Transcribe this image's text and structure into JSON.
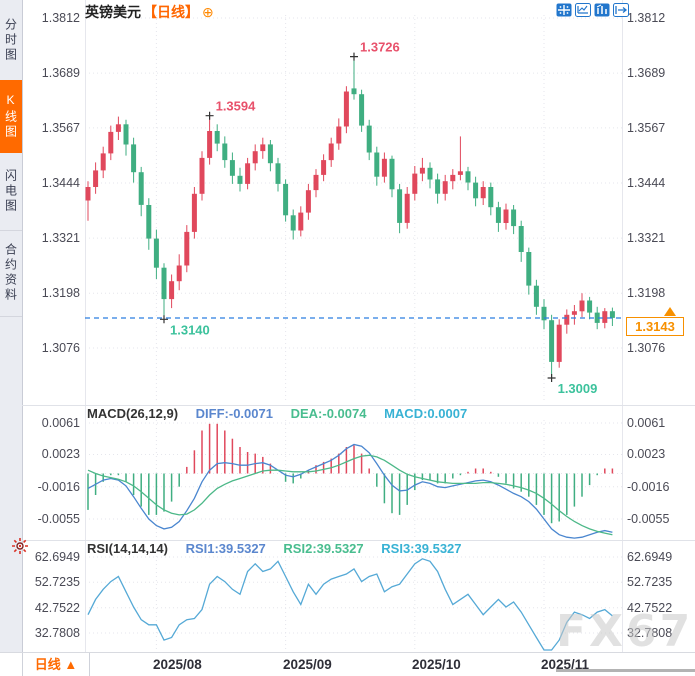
{
  "sidebar": {
    "tabs": [
      {
        "label": "分时图",
        "active": false
      },
      {
        "label": "K线图",
        "active": true
      },
      {
        "label": "闪电图",
        "active": false
      },
      {
        "label": "合约资料",
        "active": false
      }
    ]
  },
  "header": {
    "symbol": "英镑美元",
    "period_tag": "【日线】",
    "add_icon": "⊕",
    "toolbar_icons": [
      "crosshair-icon",
      "axis-scale-icon",
      "chart-style-icon",
      "popout-icon"
    ]
  },
  "colors": {
    "up": "#e0485c",
    "down": "#3fae81",
    "ann_red": "#e8516b",
    "ann_green": "#3cc29c",
    "diff_line": "#4a86cf",
    "dea_line": "#4cb888",
    "rsi_line": "#55a9d6",
    "dashed_line": "#2b7de0",
    "accent_orange": "#ff6a00",
    "tag_orange": "#f79000",
    "toolbar_blue": "#2276cc",
    "grid": "#e5e6ec"
  },
  "price_panel": {
    "axis_labels": [
      "1.3812",
      "1.3689",
      "1.3567",
      "1.3444",
      "1.3321",
      "1.3198",
      "1.3076"
    ],
    "axis_values": [
      1.3812,
      1.3689,
      1.3567,
      1.3444,
      1.3321,
      1.3198,
      1.3076
    ],
    "current_price": "1.3143"
  },
  "macd_panel": {
    "title": "MACD(26,12,9)",
    "diff_label": "DIFF:-0.0071",
    "dea_label": "DEA:-0.0074",
    "macd_label": "MACD:0.0007",
    "axis_labels": [
      "0.0061",
      "0.0023",
      "-0.0016",
      "-0.0055"
    ]
  },
  "rsi_panel": {
    "title": "RSI(14,14,14)",
    "rsi1_label": "RSI1:39.5327",
    "rsi2_label": "RSI2:39.5327",
    "rsi3_label": "RSI3:39.5327",
    "axis_labels": [
      "62.6949",
      "52.7235",
      "42.7522",
      "32.7808"
    ]
  },
  "bottom_bar": {
    "period_label": "日线",
    "period_arrow": "▲"
  },
  "watermark": "FX678",
  "chart_data": {
    "type": "candlestick",
    "instrument": "英镑美元",
    "period": "日线",
    "price_axis_range": [
      1.3076,
      1.3812
    ],
    "current_price": 1.3143,
    "month_ticks": [
      {
        "label": "2025/08",
        "index": 9
      },
      {
        "label": "2025/09",
        "index": 26
      },
      {
        "label": "2025/10",
        "index": 43
      },
      {
        "label": "2025/11",
        "index": 60
      }
    ],
    "marked_points": [
      {
        "label": "1.3594",
        "index": 16,
        "kind": "high"
      },
      {
        "label": "1.3726",
        "index": 35,
        "kind": "high"
      },
      {
        "label": "1.3140",
        "index": 10,
        "kind": "low"
      },
      {
        "label": "1.3009",
        "index": 61,
        "kind": "low"
      }
    ],
    "candles": [
      [
        1.3405,
        1.3448,
        1.336,
        1.3435
      ],
      [
        1.3435,
        1.349,
        1.342,
        1.3472
      ],
      [
        1.3472,
        1.3525,
        1.3455,
        1.351
      ],
      [
        1.351,
        1.3572,
        1.3495,
        1.3558
      ],
      [
        1.3558,
        1.3592,
        1.354,
        1.3575
      ],
      [
        1.3575,
        1.3585,
        1.3505,
        1.353
      ],
      [
        1.353,
        1.3545,
        1.3445,
        1.3468
      ],
      [
        1.3468,
        1.348,
        1.337,
        1.3395
      ],
      [
        1.3395,
        1.341,
        1.3295,
        1.332
      ],
      [
        1.332,
        1.334,
        1.323,
        1.3255
      ],
      [
        1.3255,
        1.3265,
        1.314,
        1.3185
      ],
      [
        1.3185,
        1.324,
        1.3165,
        1.3225
      ],
      [
        1.3225,
        1.3285,
        1.3205,
        1.326
      ],
      [
        1.326,
        1.335,
        1.3245,
        1.3335
      ],
      [
        1.3335,
        1.3435,
        1.332,
        1.342
      ],
      [
        1.342,
        1.3515,
        1.3405,
        1.35
      ],
      [
        1.35,
        1.3594,
        1.3485,
        1.356
      ],
      [
        1.356,
        1.3575,
        1.3515,
        1.3532
      ],
      [
        1.3532,
        1.3548,
        1.3478,
        1.3495
      ],
      [
        1.3495,
        1.3512,
        1.3442,
        1.346
      ],
      [
        1.346,
        1.3478,
        1.3425,
        1.3442
      ],
      [
        1.3442,
        1.35,
        1.343,
        1.3488
      ],
      [
        1.3488,
        1.353,
        1.3472,
        1.3515
      ],
      [
        1.3515,
        1.3545,
        1.3498,
        1.353
      ],
      [
        1.353,
        1.354,
        1.347,
        1.3488
      ],
      [
        1.3488,
        1.35,
        1.3425,
        1.3442
      ],
      [
        1.3442,
        1.3452,
        1.3358,
        1.3372
      ],
      [
        1.3372,
        1.3385,
        1.3318,
        1.3338
      ],
      [
        1.3338,
        1.3392,
        1.3325,
        1.3378
      ],
      [
        1.3378,
        1.3442,
        1.3362,
        1.3428
      ],
      [
        1.3428,
        1.3475,
        1.3412,
        1.3462
      ],
      [
        1.3462,
        1.3508,
        1.3448,
        1.3495
      ],
      [
        1.3495,
        1.3545,
        1.348,
        1.3532
      ],
      [
        1.3532,
        1.3588,
        1.3518,
        1.357
      ],
      [
        1.357,
        1.366,
        1.3555,
        1.3648
      ],
      [
        1.3655,
        1.3726,
        1.363,
        1.3642
      ],
      [
        1.3642,
        1.3652,
        1.3558,
        1.3572
      ],
      [
        1.3572,
        1.3585,
        1.3495,
        1.3512
      ],
      [
        1.3512,
        1.3525,
        1.3438,
        1.3458
      ],
      [
        1.3458,
        1.3512,
        1.3445,
        1.3498
      ],
      [
        1.3498,
        1.3505,
        1.3412,
        1.343
      ],
      [
        1.343,
        1.3442,
        1.3332,
        1.3355
      ],
      [
        1.3355,
        1.3435,
        1.3342,
        1.342
      ],
      [
        1.342,
        1.3482,
        1.3405,
        1.3465
      ],
      [
        1.3465,
        1.35,
        1.3448,
        1.3478
      ],
      [
        1.3478,
        1.349,
        1.3432,
        1.3452
      ],
      [
        1.3452,
        1.3465,
        1.3398,
        1.342
      ],
      [
        1.342,
        1.3462,
        1.3405,
        1.3448
      ],
      [
        1.3448,
        1.3475,
        1.343,
        1.3462
      ],
      [
        1.3462,
        1.3548,
        1.345,
        1.347
      ],
      [
        1.347,
        1.348,
        1.3428,
        1.3445
      ],
      [
        1.3445,
        1.3458,
        1.3392,
        1.341
      ],
      [
        1.341,
        1.3448,
        1.3395,
        1.3435
      ],
      [
        1.3435,
        1.3445,
        1.3372,
        1.339
      ],
      [
        1.339,
        1.3402,
        1.3335,
        1.3355
      ],
      [
        1.3355,
        1.3398,
        1.334,
        1.3385
      ],
      [
        1.3385,
        1.3395,
        1.333,
        1.3348
      ],
      [
        1.3348,
        1.336,
        1.3268,
        1.329
      ],
      [
        1.329,
        1.33,
        1.3195,
        1.3215
      ],
      [
        1.3215,
        1.3228,
        1.315,
        1.3168
      ],
      [
        1.3168,
        1.3185,
        1.3118,
        1.3138
      ],
      [
        1.3138,
        1.315,
        1.3009,
        1.3045
      ],
      [
        1.3045,
        1.314,
        1.3032,
        1.3128
      ],
      [
        1.3128,
        1.3162,
        1.3108,
        1.315
      ],
      [
        1.315,
        1.3172,
        1.3128,
        1.3158
      ],
      [
        1.3158,
        1.3198,
        1.3145,
        1.3182
      ],
      [
        1.3182,
        1.319,
        1.314,
        1.3155
      ],
      [
        1.3155,
        1.3168,
        1.3118,
        1.3132
      ],
      [
        1.3132,
        1.3165,
        1.312,
        1.3158
      ],
      [
        1.3158,
        1.3166,
        1.3125,
        1.3143
      ]
    ],
    "macd": {
      "params": "26,12,9",
      "diff_current": -0.0071,
      "dea_current": -0.0074,
      "macd_current": 0.0007,
      "axis": [
        0.0061,
        0.0023,
        -0.0016,
        -0.0055
      ],
      "hist_formula": "2*(diff-dea)",
      "diff": [
        -0.0018,
        -0.0013,
        -0.0008,
        -0.0006,
        -0.0008,
        -0.0015,
        -0.0028,
        -0.0042,
        -0.0055,
        -0.0063,
        -0.0067,
        -0.0065,
        -0.0058,
        -0.0045,
        -0.003,
        -0.001,
        0.0004,
        0.0012,
        0.0013,
        0.0012,
        0.001,
        0.001,
        0.0012,
        0.0013,
        0.001,
        0.0004,
        -0.0002,
        -0.0004,
        -0.0001,
        0.0004,
        0.0008,
        0.0012,
        0.0016,
        0.0022,
        0.003,
        0.0035,
        0.0033,
        0.0025,
        0.0012,
        -0.0002,
        -0.0014,
        -0.0021,
        -0.002,
        -0.0014,
        -0.001,
        -0.0012,
        -0.0016,
        -0.0017,
        -0.0015,
        -0.0013,
        -0.0011,
        -0.0009,
        -0.0008,
        -0.001,
        -0.0014,
        -0.0019,
        -0.0024,
        -0.0028,
        -0.0034,
        -0.0043,
        -0.0055,
        -0.0067,
        -0.0074,
        -0.0077,
        -0.0078,
        -0.0077,
        -0.0074,
        -0.0071,
        -0.0069,
        -0.0071
      ],
      "dea": [
        0.0004,
        0.0,
        -0.0003,
        -0.0005,
        -0.0007,
        -0.001,
        -0.0015,
        -0.0022,
        -0.003,
        -0.0038,
        -0.0044,
        -0.0048,
        -0.005,
        -0.0049,
        -0.0044,
        -0.0036,
        -0.0026,
        -0.0018,
        -0.0013,
        -0.0009,
        -0.0006,
        -0.0003,
        0.0,
        0.0003,
        0.0004,
        0.0004,
        0.0003,
        0.0002,
        0.0002,
        0.0002,
        0.0003,
        0.0005,
        0.0007,
        0.001,
        0.0014,
        0.0018,
        0.0021,
        0.0022,
        0.002,
        0.0016,
        0.001,
        0.0004,
        -0.0001,
        -0.0004,
        -0.0006,
        -0.0008,
        -0.001,
        -0.0011,
        -0.0012,
        -0.0012,
        -0.0012,
        -0.0012,
        -0.0011,
        -0.0011,
        -0.0012,
        -0.0013,
        -0.0015,
        -0.0017,
        -0.002,
        -0.0024,
        -0.003,
        -0.0037,
        -0.0045,
        -0.0052,
        -0.0058,
        -0.0063,
        -0.0067,
        -0.007,
        -0.0072,
        -0.0074
      ]
    },
    "rsi": {
      "params": "14,14,14",
      "rsi1_current": 39.5327,
      "rsi2_current": 39.5327,
      "rsi3_current": 39.5327,
      "axis": [
        62.6949,
        52.7235,
        42.7522,
        32.7808
      ],
      "values": [
        40,
        46,
        50,
        53,
        55,
        49,
        43,
        38,
        36,
        36,
        30,
        31,
        36,
        38,
        38.5,
        42,
        52,
        55,
        53,
        50,
        48,
        57,
        60,
        57,
        58,
        61,
        55,
        49,
        44,
        52,
        48,
        52,
        54,
        55,
        56,
        58,
        53,
        55,
        56,
        49,
        51,
        52,
        56,
        60,
        62,
        61,
        57,
        50,
        44,
        46,
        48,
        44,
        40,
        43,
        46,
        43,
        45,
        41,
        36,
        31,
        26,
        25.5,
        30,
        37,
        41,
        40,
        38.5,
        41,
        42,
        39.53
      ]
    }
  }
}
